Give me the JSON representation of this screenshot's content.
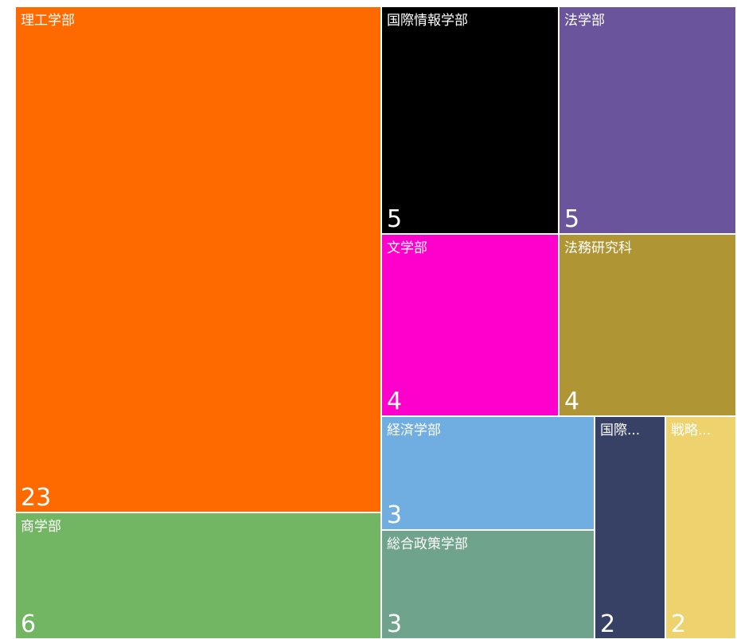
{
  "chart_data": {
    "type": "treemap",
    "items": [
      {
        "label": "理工学部",
        "value": 23,
        "color": "#ff6a00"
      },
      {
        "label": "商学部",
        "value": 6,
        "color": "#72b562"
      },
      {
        "label": "国際情報学部",
        "value": 5,
        "color": "#000000"
      },
      {
        "label": "法学部",
        "value": 5,
        "color": "#6a559c"
      },
      {
        "label": "文学部",
        "value": 4,
        "color": "#ff00cc"
      },
      {
        "label": "法務研究科",
        "value": 4,
        "color": "#b09535"
      },
      {
        "label": "経済学部",
        "value": 3,
        "color": "#70ade0"
      },
      {
        "label": "総合政策学部",
        "value": 3,
        "color": "#6fa38b"
      },
      {
        "label": "国際...",
        "value": 2,
        "color": "#374165"
      },
      {
        "label": "戦略...",
        "value": 2,
        "color": "#eed26d"
      }
    ]
  }
}
